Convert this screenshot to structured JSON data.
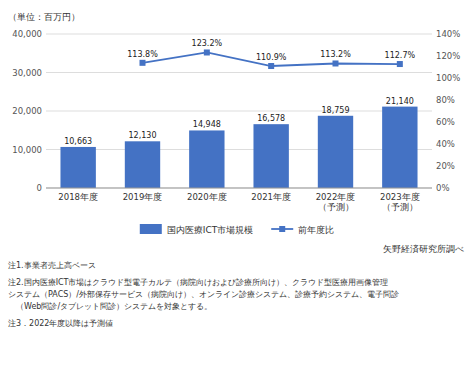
{
  "chart_data": {
    "type": "bar",
    "ylabel": "（単位：百万円）",
    "categories": [
      "2018年度",
      "2019年度",
      "2020年度",
      "2021年度",
      "2022年度\n（予測）",
      "2023年度\n（予測）"
    ],
    "series": [
      {
        "name": "国内医療ICT市場規模",
        "type": "bar",
        "color": "#4472c4",
        "values": [
          10663,
          12130,
          14948,
          16578,
          18759,
          21140
        ],
        "value_labels": [
          "10,663",
          "12,130",
          "14,948",
          "16,578",
          "18,759",
          "21,140"
        ]
      },
      {
        "name": "前年度比",
        "type": "line",
        "axis": "y2",
        "color": "#4472c4",
        "marker": "square",
        "values": [
          null,
          113.8,
          123.2,
          110.9,
          113.2,
          112.7
        ],
        "value_labels": [
          null,
          "113.8%",
          "123.2%",
          "110.9%",
          "113.2%",
          "112.7%"
        ]
      }
    ],
    "ylim": [
      0,
      40000
    ],
    "yticks": [
      0,
      {
        "value": 10000,
        "label": "10,000"
      },
      {
        "value": 20000,
        "label": "20,000"
      },
      {
        "value": 30000,
        "label": "30,000"
      },
      {
        "value": 40000,
        "label": "40,000"
      }
    ],
    "y2lim": [
      0,
      140
    ],
    "y2ticks": [
      {
        "value": 0,
        "label": "0%"
      },
      {
        "value": 20,
        "label": "20%"
      },
      {
        "value": 40,
        "label": "40%"
      },
      {
        "value": 60,
        "label": "60%"
      },
      {
        "value": 80,
        "label": "80%"
      },
      {
        "value": 100,
        "label": "100%"
      },
      {
        "value": 120,
        "label": "120%"
      },
      {
        "value": 140,
        "label": "140%"
      }
    ],
    "grid": true,
    "legend": "bottom",
    "data_labels": true,
    "annotations": [
      "矢野経済研究所調べ",
      "注1.事業者売上高ベース",
      "注2.国内医療ICT市場はクラウド型電子カルテ（病院向けおよび診療所向け）、クラウド型医療用画像管理\nシステム（PACS）/外部保存サービス（病院向け）、オンライン診療システム、診療予約システム、電子問診\n　（Web問診/タブレット問診）システムを対象とする。",
      "注3．2022年度以降は予測値"
    ]
  }
}
